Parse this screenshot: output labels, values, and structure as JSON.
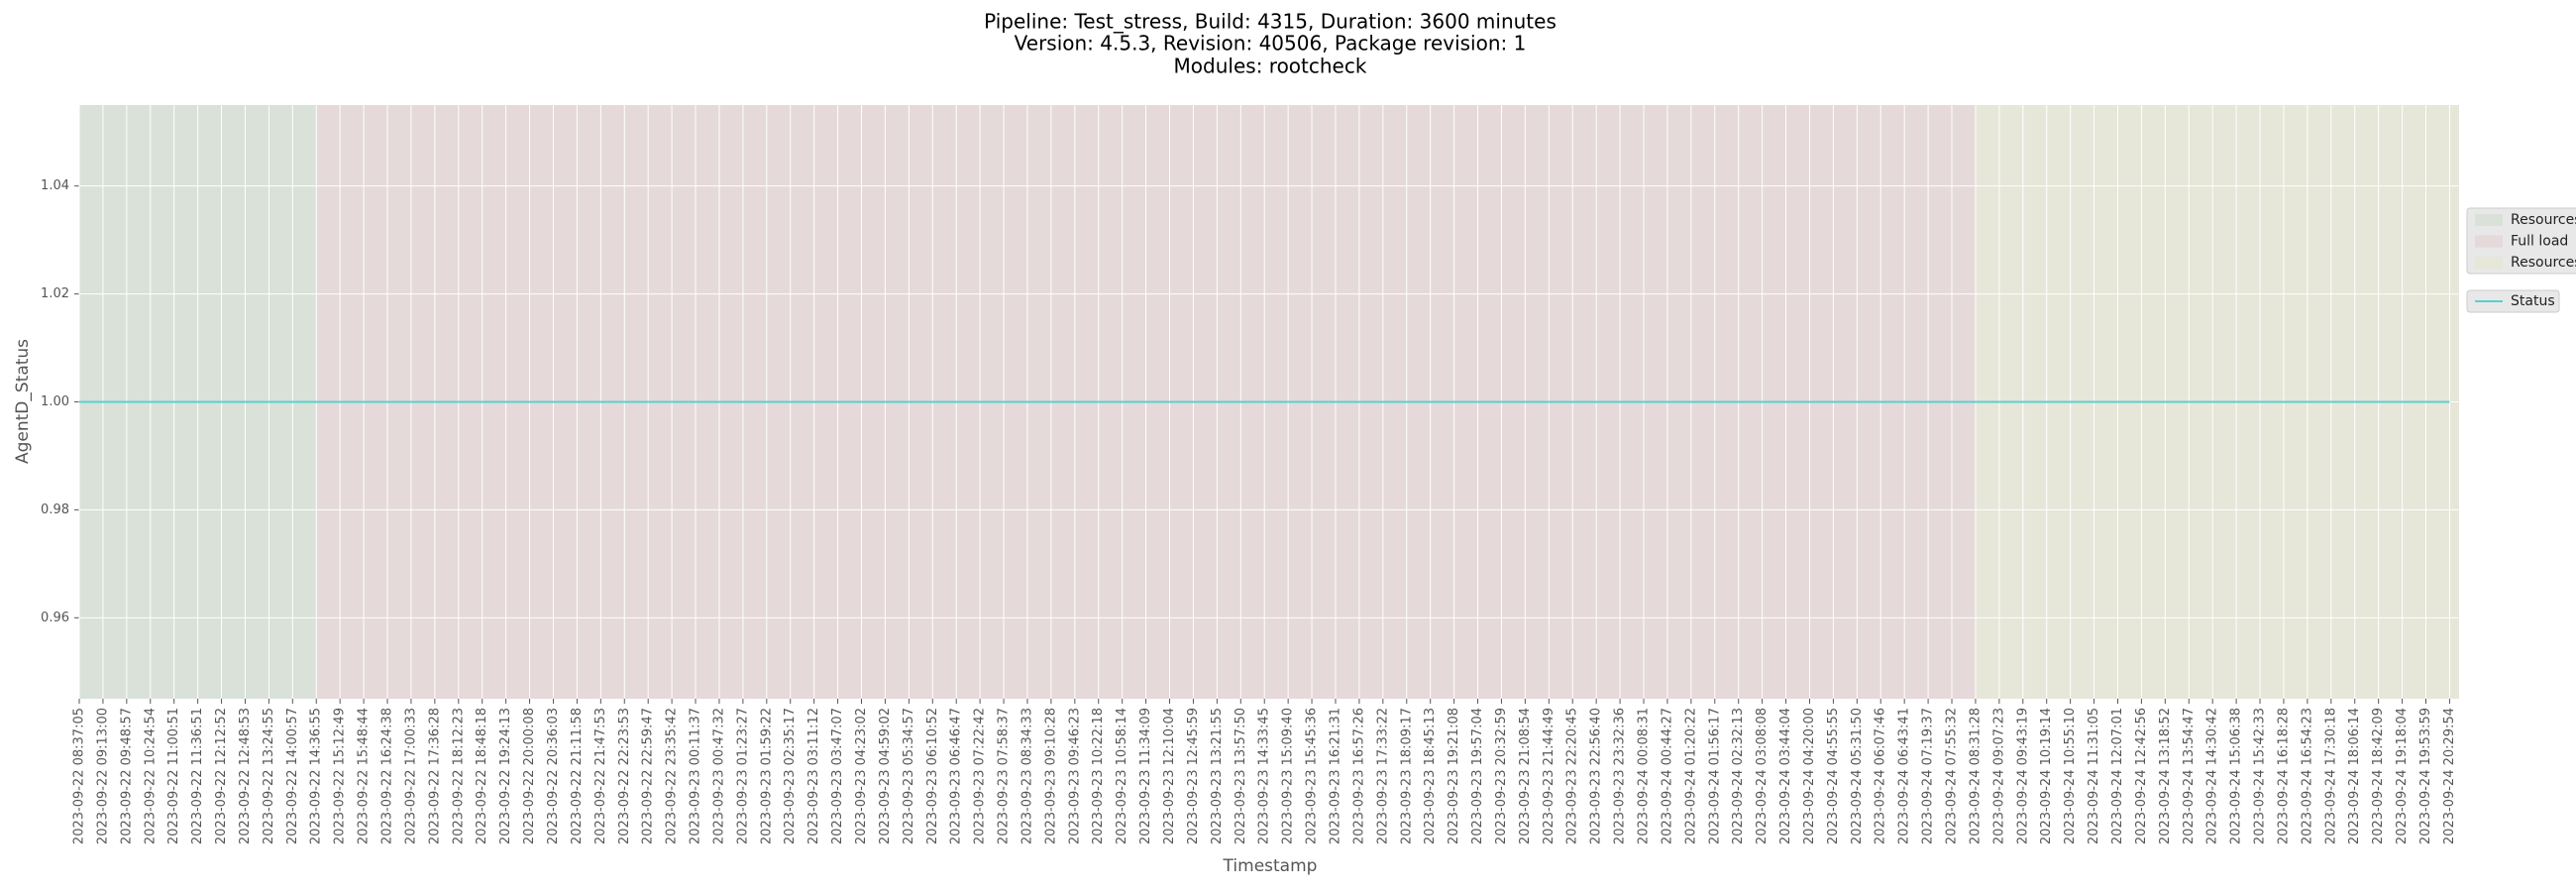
{
  "chart_data": {
    "type": "line",
    "title": [
      "Pipeline: Test_stress, Build: 4315, Duration: 3600 minutes",
      "Version: 4.5.3, Revision: 40506, Package revision: 1",
      "Modules: rootcheck"
    ],
    "xlabel": "Timestamp",
    "ylabel": "AgentD_Status",
    "categories": [
      "2023-09-22 08:37:05",
      "2023-09-22 09:13:00",
      "2023-09-22 09:48:57",
      "2023-09-22 10:24:54",
      "2023-09-22 11:00:51",
      "2023-09-22 11:36:51",
      "2023-09-22 12:12:52",
      "2023-09-22 12:48:53",
      "2023-09-22 13:24:55",
      "2023-09-22 14:00:57",
      "2023-09-22 14:36:55",
      "2023-09-22 15:12:49",
      "2023-09-22 15:48:44",
      "2023-09-22 16:24:38",
      "2023-09-22 17:00:33",
      "2023-09-22 17:36:28",
      "2023-09-22 18:12:23",
      "2023-09-22 18:48:18",
      "2023-09-22 19:24:13",
      "2023-09-22 20:00:08",
      "2023-09-22 20:36:03",
      "2023-09-22 21:11:58",
      "2023-09-22 21:47:53",
      "2023-09-22 22:23:53",
      "2023-09-22 22:59:47",
      "2023-09-22 23:35:42",
      "2023-09-23 00:11:37",
      "2023-09-23 00:47:32",
      "2023-09-23 01:23:27",
      "2023-09-23 01:59:22",
      "2023-09-23 02:35:17",
      "2023-09-23 03:11:12",
      "2023-09-23 03:47:07",
      "2023-09-23 04:23:02",
      "2023-09-23 04:59:02",
      "2023-09-23 05:34:57",
      "2023-09-23 06:10:52",
      "2023-09-23 06:46:47",
      "2023-09-23 07:22:42",
      "2023-09-23 07:58:37",
      "2023-09-23 08:34:33",
      "2023-09-23 09:10:28",
      "2023-09-23 09:46:23",
      "2023-09-23 10:22:18",
      "2023-09-23 10:58:14",
      "2023-09-23 11:34:09",
      "2023-09-23 12:10:04",
      "2023-09-23 12:45:59",
      "2023-09-23 13:21:55",
      "2023-09-23 13:57:50",
      "2023-09-23 14:33:45",
      "2023-09-23 15:09:40",
      "2023-09-23 15:45:36",
      "2023-09-23 16:21:31",
      "2023-09-23 16:57:26",
      "2023-09-23 17:33:22",
      "2023-09-23 18:09:17",
      "2023-09-23 18:45:13",
      "2023-09-23 19:21:08",
      "2023-09-23 19:57:04",
      "2023-09-23 20:32:59",
      "2023-09-23 21:08:54",
      "2023-09-23 21:44:49",
      "2023-09-23 22:20:45",
      "2023-09-23 22:56:40",
      "2023-09-23 23:32:36",
      "2023-09-24 00:08:31",
      "2023-09-24 00:44:27",
      "2023-09-24 01:20:22",
      "2023-09-24 01:56:17",
      "2023-09-24 02:32:13",
      "2023-09-24 03:08:08",
      "2023-09-24 03:44:04",
      "2023-09-24 04:20:00",
      "2023-09-24 04:55:55",
      "2023-09-24 05:31:50",
      "2023-09-24 06:07:46",
      "2023-09-24 06:43:41",
      "2023-09-24 07:19:37",
      "2023-09-24 07:55:32",
      "2023-09-24 08:31:28",
      "2023-09-24 09:07:23",
      "2023-09-24 09:43:19",
      "2023-09-24 10:19:14",
      "2023-09-24 10:55:10",
      "2023-09-24 11:31:05",
      "2023-09-24 12:07:01",
      "2023-09-24 12:42:56",
      "2023-09-24 13:18:52",
      "2023-09-24 13:54:47",
      "2023-09-24 14:30:42",
      "2023-09-24 15:06:38",
      "2023-09-24 15:42:33",
      "2023-09-24 16:18:28",
      "2023-09-24 16:54:23",
      "2023-09-24 17:30:18",
      "2023-09-24 18:06:14",
      "2023-09-24 18:42:09",
      "2023-09-24 19:18:04",
      "2023-09-24 19:53:59",
      "2023-09-24 20:29:54"
    ],
    "series": [
      {
        "name": "Status",
        "color": "#5ccfcf",
        "values": [
          1,
          1,
          1,
          1,
          1,
          1,
          1,
          1,
          1,
          1,
          1,
          1,
          1,
          1,
          1,
          1,
          1,
          1,
          1,
          1,
          1,
          1,
          1,
          1,
          1,
          1,
          1,
          1,
          1,
          1,
          1,
          1,
          1,
          1,
          1,
          1,
          1,
          1,
          1,
          1,
          1,
          1,
          1,
          1,
          1,
          1,
          1,
          1,
          1,
          1,
          1,
          1,
          1,
          1,
          1,
          1,
          1,
          1,
          1,
          1,
          1,
          1,
          1,
          1,
          1,
          1,
          1,
          1,
          1,
          1,
          1,
          1,
          1,
          1,
          1,
          1,
          1,
          1,
          1,
          1,
          1,
          1,
          1,
          1,
          1,
          1,
          1,
          1,
          1,
          1,
          1,
          1,
          1,
          1,
          1,
          1,
          1,
          1,
          1,
          1,
          1
        ]
      }
    ],
    "regions": [
      {
        "name": "Resources",
        "color": "#d9e1d9",
        "span": [
          0,
          10
        ]
      },
      {
        "name": "Full load",
        "color": "#e5d9da",
        "span": [
          10,
          80
        ]
      },
      {
        "name": "Resources",
        "color": "#e6e6d9",
        "span": [
          80,
          100.4
        ]
      }
    ],
    "xlim": [
      0,
      100.4
    ],
    "ylim": [
      0.945,
      1.055
    ],
    "yticks": [
      0.96,
      0.98,
      {
        "value": 1.0,
        "label": "1.00"
      },
      1.02,
      1.04
    ],
    "grid": true
  }
}
